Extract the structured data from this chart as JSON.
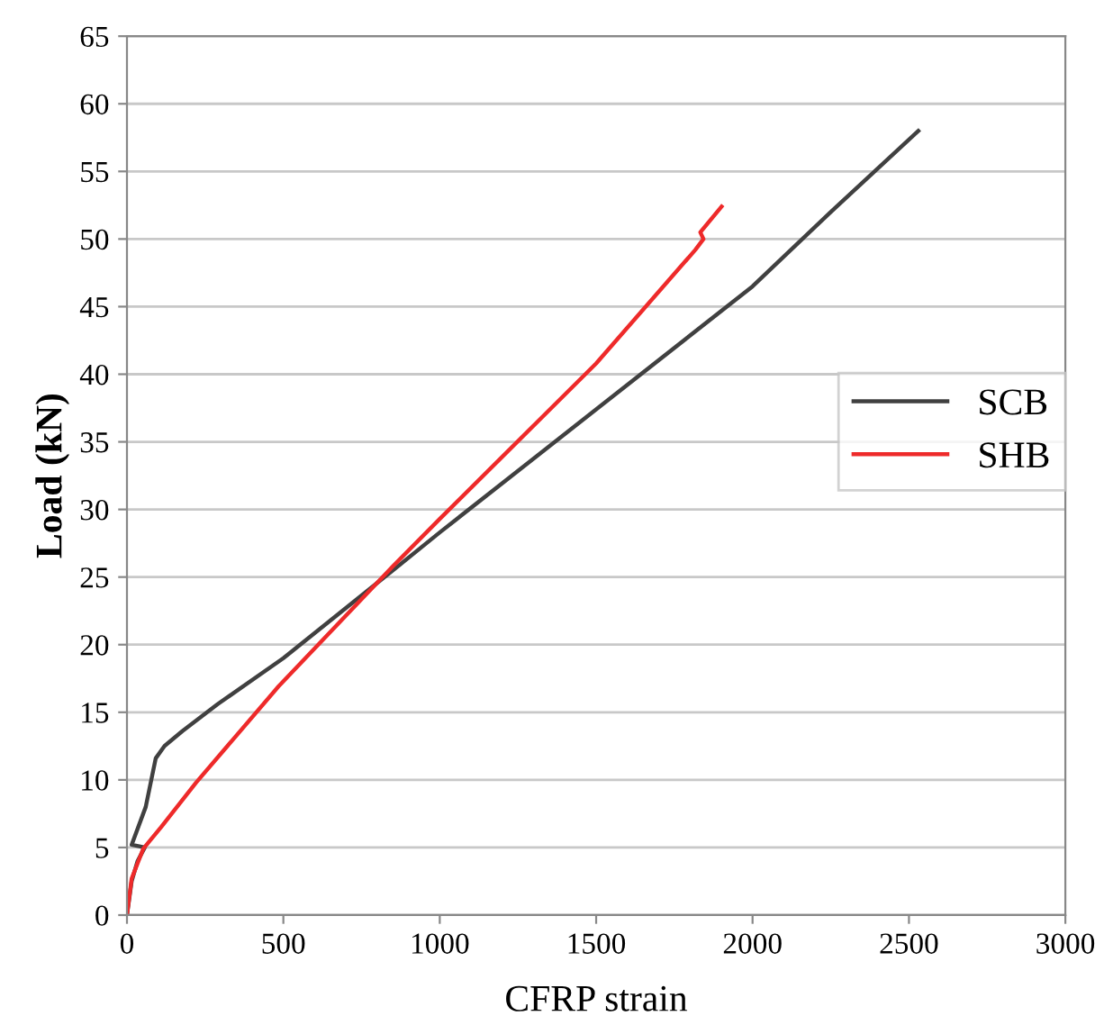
{
  "chart_data": {
    "type": "line",
    "xlabel": "CFRP strain",
    "ylabel": "Load (kN)",
    "xlim": [
      0,
      3000
    ],
    "xticks": [
      0,
      500,
      1000,
      1500,
      2000,
      2500,
      3000
    ],
    "ylim": [
      0,
      65
    ],
    "yticks": [
      0,
      5,
      10,
      15,
      20,
      25,
      30,
      35,
      40,
      45,
      50,
      55,
      60,
      65
    ],
    "grid": "y",
    "legend": "right",
    "marker": "none",
    "line_style": "solid",
    "series": [
      {
        "name": "SCB",
        "color": "#404040",
        "x": [
          0,
          15,
          34,
          57,
          15,
          60,
          92,
          120,
          177,
          290,
          500,
          850,
          1000,
          1500,
          2000,
          2250,
          2530
        ],
        "values": [
          0,
          2.5,
          4,
          5,
          5.2,
          8,
          11.6,
          12.5,
          13.6,
          15.6,
          19,
          25.5,
          28.3,
          37.4,
          46.5,
          52,
          58
        ]
      },
      {
        "name": "SHB",
        "color": "#ee2a2a",
        "x": [
          0,
          15,
          52,
          109,
          221,
          484,
          850,
          1000,
          1500,
          1817,
          1843,
          1833,
          1901
        ],
        "values": [
          0,
          2.7,
          4.9,
          6.5,
          9.8,
          16.9,
          25.8,
          29.3,
          40.8,
          49.2,
          50,
          50.5,
          52.4
        ]
      }
    ]
  }
}
